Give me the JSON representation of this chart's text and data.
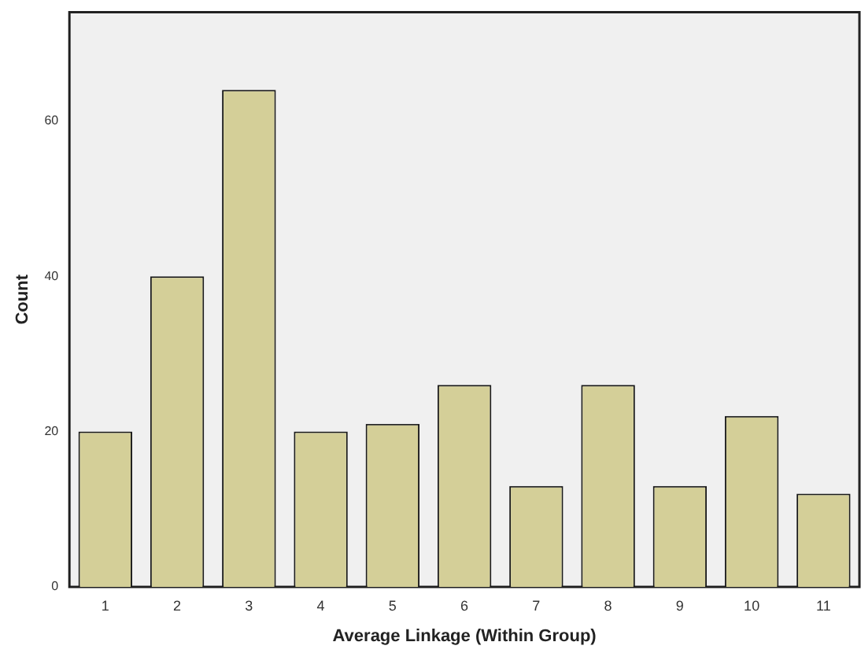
{
  "chart_data": {
    "type": "bar",
    "xlabel": "Average Linkage (Within Group)",
    "ylabel": "Count",
    "categories": [
      "1",
      "2",
      "3",
      "4",
      "5",
      "6",
      "7",
      "8",
      "9",
      "10",
      "11"
    ],
    "values": [
      20,
      40,
      64,
      20,
      21,
      26,
      13,
      26,
      13,
      22,
      12
    ],
    "color": "#d4cf98",
    "ylim": [
      0,
      74
    ],
    "yticks": [
      0,
      20,
      40,
      60
    ],
    "grid": false,
    "legend": false
  }
}
